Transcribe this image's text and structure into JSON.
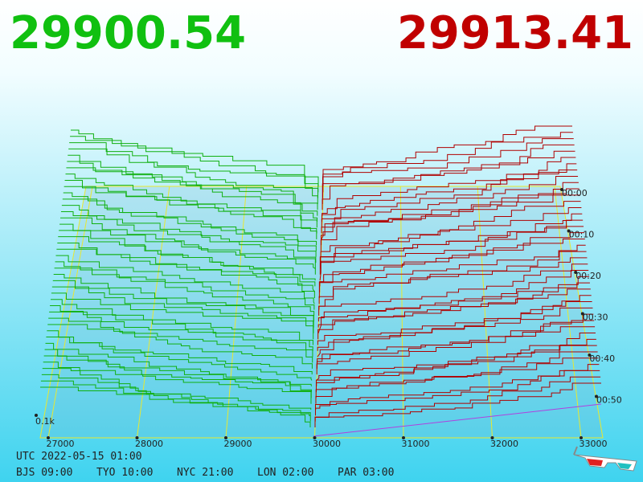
{
  "header": {
    "bid": "29900.54",
    "ask": "29913.41"
  },
  "axis": {
    "price_labels": [
      "27000",
      "28000",
      "29000",
      "30000",
      "31000",
      "32000",
      "33000"
    ],
    "time_labels": [
      "00:00",
      "00:10",
      "00:20",
      "00:30",
      "00:40",
      "00:50"
    ],
    "depth_label": "0.1k"
  },
  "footer": {
    "utc": "UTC 2022-05-15 01:00",
    "zones": [
      "BJS 09:00",
      "TYO 10:00",
      "NYC 21:00",
      "LON 02:00",
      "PAR 03:00"
    ]
  }
}
